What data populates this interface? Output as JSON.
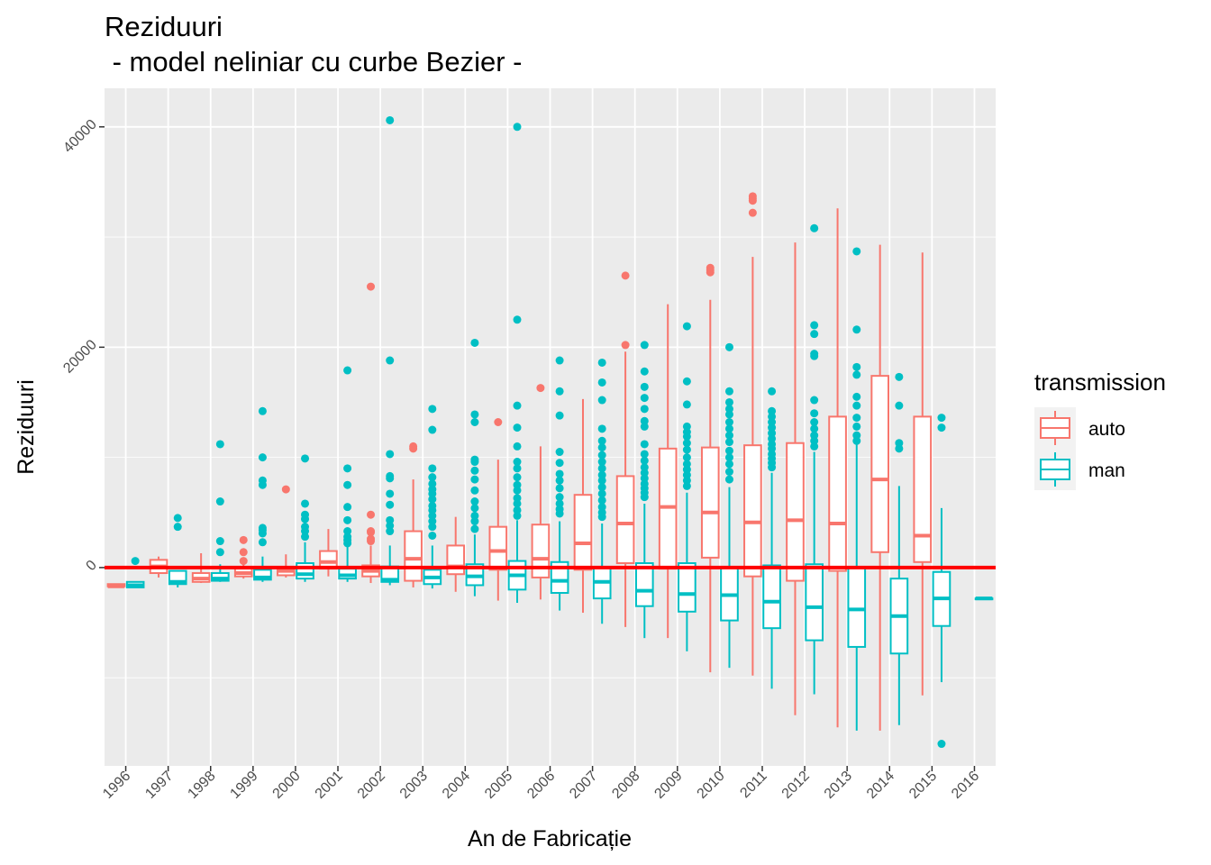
{
  "chart_data": {
    "type": "boxplot",
    "title": "Reziduuri",
    "subtitle": " - model neliniar cu curbe Bezier -",
    "xlabel": "An de Fabricație",
    "ylabel": "Reziduuri",
    "categories": [
      "1996",
      "1997",
      "1998",
      "1999",
      "2000",
      "2001",
      "2002",
      "2003",
      "2004",
      "2005",
      "2006",
      "2007",
      "2008",
      "2009",
      "2010",
      "2011",
      "2012",
      "2013",
      "2014",
      "2015",
      "2016"
    ],
    "ylim": [
      -18000,
      43500
    ],
    "yticks": [
      0,
      20000,
      40000
    ],
    "ytick_labels": [
      "0",
      "20000",
      "40000"
    ],
    "grid": true,
    "background": "#ebebeb",
    "reference_line": {
      "y": 0,
      "color": "#ff0000"
    },
    "legend": {
      "title": "transmission",
      "position": "right"
    },
    "series": [
      {
        "name": "auto",
        "color": "#f8766d",
        "boxes": [
          {
            "x": "1996",
            "min": -1700,
            "q1": -1700,
            "median": -1700,
            "q3": -1500,
            "max": -1500,
            "outliers": []
          },
          {
            "x": "1997",
            "min": -900,
            "q1": -500,
            "median": 100,
            "q3": 700,
            "max": 1000,
            "outliers": []
          },
          {
            "x": "1998",
            "min": -1400,
            "q1": -1300,
            "median": -1000,
            "q3": -500,
            "max": 1300,
            "outliers": []
          },
          {
            "x": "1999",
            "min": -1000,
            "q1": -800,
            "median": -500,
            "q3": -100,
            "max": 400,
            "outliers": [
              600,
              1400,
              2500
            ]
          },
          {
            "x": "2000",
            "min": -900,
            "q1": -700,
            "median": -300,
            "q3": 0,
            "max": 1200,
            "outliers": [
              7100
            ]
          },
          {
            "x": "2001",
            "min": -800,
            "q1": -100,
            "median": 500,
            "q3": 1500,
            "max": 3500,
            "outliers": []
          },
          {
            "x": "2002",
            "min": -1400,
            "q1": -800,
            "median": -300,
            "q3": 200,
            "max": 2000,
            "outliers": [
              2400,
              2600,
              3200,
              3300,
              4800,
              25500
            ]
          },
          {
            "x": "2003",
            "min": -1800,
            "q1": -1200,
            "median": 800,
            "q3": 3300,
            "max": 8000,
            "outliers": [
              10800,
              11000
            ]
          },
          {
            "x": "2004",
            "min": -2200,
            "q1": -600,
            "median": 100,
            "q3": 2000,
            "max": 4600,
            "outliers": []
          },
          {
            "x": "2005",
            "min": -3000,
            "q1": -200,
            "median": 1500,
            "q3": 3700,
            "max": 9800,
            "outliers": [
              13200
            ]
          },
          {
            "x": "2006",
            "min": -2900,
            "q1": -900,
            "median": 800,
            "q3": 3900,
            "max": 11000,
            "outliers": [
              16300
            ]
          },
          {
            "x": "2007",
            "min": -4100,
            "q1": -200,
            "median": 2200,
            "q3": 6600,
            "max": 15300,
            "outliers": []
          },
          {
            "x": "2008",
            "min": -5400,
            "q1": 400,
            "median": 4000,
            "q3": 8300,
            "max": 19600,
            "outliers": [
              20200,
              26500
            ]
          },
          {
            "x": "2009",
            "min": -6400,
            "q1": -100,
            "median": 5500,
            "q3": 10800,
            "max": 23900,
            "outliers": []
          },
          {
            "x": "2010",
            "min": -9500,
            "q1": 900,
            "median": 5000,
            "q3": 10900,
            "max": 24300,
            "outliers": [
              26800,
              27000,
              27200
            ]
          },
          {
            "x": "2011",
            "min": -9800,
            "q1": -800,
            "median": 4100,
            "q3": 11100,
            "max": 28200,
            "outliers": [
              32200,
              33300,
              33500,
              33700
            ]
          },
          {
            "x": "2012",
            "min": -13400,
            "q1": -1200,
            "median": 4300,
            "q3": 11300,
            "max": 29500,
            "outliers": []
          },
          {
            "x": "2013",
            "min": -14500,
            "q1": -300,
            "median": 4000,
            "q3": 13700,
            "max": 32600,
            "outliers": []
          },
          {
            "x": "2014",
            "min": -14800,
            "q1": 1400,
            "median": 8000,
            "q3": 17400,
            "max": 29300,
            "outliers": []
          },
          {
            "x": "2015",
            "min": -11600,
            "q1": 500,
            "median": 2900,
            "q3": 13700,
            "max": 28600,
            "outliers": []
          }
        ]
      },
      {
        "name": "man",
        "color": "#00bfc4",
        "boxes": [
          {
            "x": "1996",
            "min": -1800,
            "q1": -1800,
            "median": -1600,
            "q3": -1300,
            "max": -1300,
            "outliers": [
              600
            ]
          },
          {
            "x": "1997",
            "min": -1800,
            "q1": -1500,
            "median": -1300,
            "q3": -300,
            "max": -300,
            "outliers": [
              3700,
              4500
            ]
          },
          {
            "x": "1998",
            "min": -1300,
            "q1": -1200,
            "median": -1000,
            "q3": -500,
            "max": 300,
            "outliers": [
              1400,
              2400,
              6000,
              11200
            ]
          },
          {
            "x": "1999",
            "min": -1300,
            "q1": -1100,
            "median": -900,
            "q3": -200,
            "max": 1000,
            "outliers": [
              2300,
              3100,
              3400,
              3600,
              7500,
              7900,
              10000,
              14200
            ]
          },
          {
            "x": "2000",
            "min": -1300,
            "q1": -1000,
            "median": -600,
            "q3": 400,
            "max": 2300,
            "outliers": [
              2800,
              3300,
              3700,
              4400,
              4800,
              5800,
              9900
            ]
          },
          {
            "x": "2001",
            "min": -1300,
            "q1": -1000,
            "median": -700,
            "q3": -100,
            "max": 1900,
            "outliers": [
              2200,
              2500,
              2800,
              3300,
              4300,
              5500,
              7500,
              9000,
              17900
            ]
          },
          {
            "x": "2002",
            "min": -1600,
            "q1": -1300,
            "median": -1100,
            "q3": 100,
            "max": 2000,
            "outliers": [
              3300,
              3800,
              4300,
              5700,
              6700,
              8100,
              8300,
              10300,
              18800,
              40600
            ]
          },
          {
            "x": "2003",
            "min": -1900,
            "q1": -1500,
            "median": -900,
            "q3": -200,
            "max": 2000,
            "outliers": [
              2900,
              3700,
              4200,
              4700,
              5200,
              5600,
              6200,
              6700,
              7100,
              7600,
              8200,
              9000,
              12500,
              14400
            ]
          },
          {
            "x": "2004",
            "min": -2600,
            "q1": -1600,
            "median": -800,
            "q3": 300,
            "max": 3000,
            "outliers": [
              3500,
              4200,
              4700,
              5400,
              6000,
              7000,
              8000,
              8800,
              9600,
              9800,
              13200,
              13900,
              20400
            ]
          },
          {
            "x": "2005",
            "min": -3200,
            "q1": -2000,
            "median": -700,
            "q3": 600,
            "max": 4300,
            "outliers": [
              4700,
              5200,
              5800,
              6300,
              7000,
              7500,
              8200,
              9000,
              9600,
              11000,
              12700,
              14700,
              22500,
              40000
            ]
          },
          {
            "x": "2006",
            "min": -3900,
            "q1": -2300,
            "median": -1200,
            "q3": 500,
            "max": 4200,
            "outliers": [
              4900,
              5300,
              5800,
              6400,
              7200,
              7900,
              8500,
              9500,
              10500,
              13800,
              16000,
              18800
            ]
          },
          {
            "x": "2007",
            "min": -5100,
            "q1": -2800,
            "median": -1300,
            "q3": 0,
            "max": 4000,
            "outliers": [
              4600,
              5000,
              5500,
              6100,
              6700,
              7300,
              7900,
              8400,
              9000,
              9600,
              10200,
              10900,
              11500,
              12600,
              15200,
              16800,
              18600
            ]
          },
          {
            "x": "2008",
            "min": -6400,
            "q1": -3500,
            "median": -2100,
            "q3": 400,
            "max": 5800,
            "outliers": [
              6400,
              6800,
              7200,
              7600,
              8100,
              8600,
              9100,
              9700,
              10300,
              11200,
              12800,
              13300,
              14400,
              15400,
              16400,
              17800,
              20200
            ]
          },
          {
            "x": "2009",
            "min": -7600,
            "q1": -4000,
            "median": -2400,
            "q3": 400,
            "max": 6800,
            "outliers": [
              7400,
              7900,
              8400,
              8900,
              9400,
              10000,
              10700,
              11300,
              11900,
              12300,
              12800,
              14800,
              16900,
              21900
            ]
          },
          {
            "x": "2010",
            "min": -9100,
            "q1": -4800,
            "median": -2500,
            "q3": 0,
            "max": 7300,
            "outliers": [
              8000,
              8700,
              9400,
              10000,
              10600,
              11400,
              12000,
              12600,
              13200,
              13900,
              14400,
              15000,
              16000,
              20000
            ]
          },
          {
            "x": "2011",
            "min": -11000,
            "q1": -5500,
            "median": -3100,
            "q3": 200,
            "max": 8600,
            "outliers": [
              9100,
              9500,
              9900,
              10300,
              10800,
              11200,
              11700,
              12200,
              12700,
              13200,
              13700,
              14200,
              16000
            ]
          },
          {
            "x": "2012",
            "min": -11500,
            "q1": -6600,
            "median": -3600,
            "q3": 300,
            "max": 10500,
            "outliers": [
              11000,
              11500,
              12000,
              12600,
              13200,
              14000,
              15200,
              19200,
              19400,
              21200,
              22000,
              30800
            ]
          },
          {
            "x": "2013",
            "min": -14800,
            "q1": -7200,
            "median": -3800,
            "q3": 0,
            "max": 11200,
            "outliers": [
              11500,
              12000,
              12800,
              13600,
              14700,
              15500,
              17500,
              18200,
              21600,
              28700
            ]
          },
          {
            "x": "2014",
            "min": -14300,
            "q1": -7800,
            "median": -4400,
            "q3": -1000,
            "max": 7400,
            "outliers": [
              10800,
              11300,
              14700,
              17300
            ]
          },
          {
            "x": "2015",
            "min": -10400,
            "q1": -5300,
            "median": -2800,
            "q3": -400,
            "max": 5400,
            "outliers": [
              -16000,
              12700,
              13600
            ]
          },
          {
            "x": "2016",
            "min": -2800,
            "q1": -2800,
            "median": -2800,
            "q3": -2800,
            "max": -2800,
            "outliers": []
          }
        ]
      }
    ]
  }
}
